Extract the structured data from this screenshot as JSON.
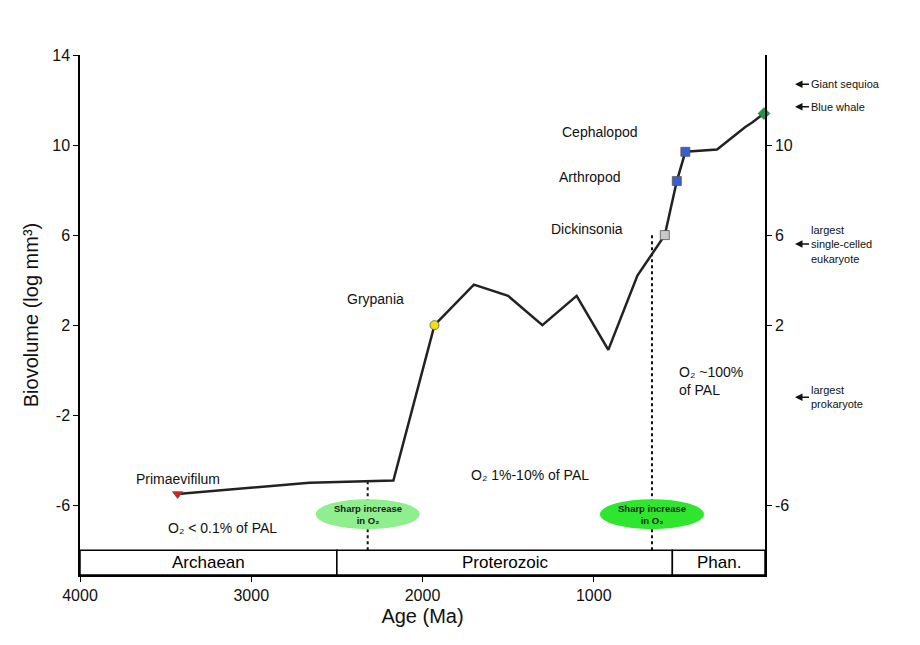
{
  "chart_data": {
    "type": "line",
    "x_label": "Age (Ma)",
    "y_label": "Biovolume (log mm³)",
    "x": [
      3430,
      2660,
      2170,
      1930,
      1700,
      1500,
      1300,
      1100,
      915,
      745,
      585,
      515,
      465,
      280,
      115,
      75,
      6
    ],
    "values": [
      -5.5,
      -5.0,
      -4.9,
      2.0,
      3.8,
      3.3,
      2.0,
      3.3,
      0.9,
      4.2,
      6.0,
      8.4,
      9.7,
      9.8,
      10.8,
      11.0,
      11.4
    ],
    "color": "#222222",
    "xlim": [
      4000,
      0
    ],
    "xticks": [
      4000,
      3000,
      2000,
      1000
    ],
    "ylim": [
      -9.1,
      14
    ],
    "yticks": [
      -6,
      -2,
      2,
      6,
      10,
      14
    ],
    "y2lim": [
      -9.1,
      14
    ],
    "y2ticks": [
      -6,
      2,
      6,
      10
    ],
    "grid": false,
    "points": [
      {
        "label": "Primaevifilum",
        "x": 3430,
        "value": -5.5,
        "color": "#e0201b",
        "marker": "triangle-down"
      },
      {
        "label": "Grypania",
        "x": 1930,
        "value": 2.0,
        "color": "#f2e10c",
        "marker": "circle"
      },
      {
        "label": "Dickinsonia",
        "x": 585,
        "value": 6.0,
        "color": "#c8c8c8",
        "marker": "square"
      },
      {
        "label": "Arthropod",
        "x": 515,
        "value": 8.4,
        "color": "#3a5fcd",
        "marker": "square"
      },
      {
        "label": "Cephalopod",
        "x": 465,
        "value": 9.7,
        "color": "#3a5fcd",
        "marker": "square"
      },
      {
        "x": 6,
        "value": 11.4,
        "color": "#1a9850",
        "marker": "diamond"
      }
    ],
    "size_references": [
      {
        "label": "Giant sequioa",
        "value": 12.7
      },
      {
        "label": "Blue whale",
        "value": 11.7
      },
      {
        "label": "largest single-celled eukaryote",
        "value": 5.6
      },
      {
        "label": "largest prokaryote",
        "value": -1.2
      }
    ],
    "oxygen_levels": [
      {
        "label": "O₂ < 0.1% of PAL",
        "x": 3170,
        "y": -7.0
      },
      {
        "label": "O₂ 1%-10% of PAL",
        "x": 1370,
        "y": -4.65
      },
      {
        "label": "O₂ ~100% of PAL",
        "x": 314,
        "y": -0.5
      }
    ],
    "oxygen_events": [
      {
        "label": "Sharp increase in O₂",
        "x": 2320,
        "y": -6.4,
        "line_top": -4.9,
        "color": "#8fef8f"
      },
      {
        "label": "Sharp increase in O₂",
        "x": 660,
        "y": -6.4,
        "line_top": 6.0,
        "color": "#2ee62e"
      }
    ],
    "era_band_top": -8,
    "eras": [
      {
        "label": "Archaean",
        "start": 4000,
        "end": 2500
      },
      {
        "label": "Proterozoic",
        "start": 2500,
        "end": 541
      },
      {
        "label": "Phan.",
        "start": 541,
        "end": 0
      }
    ]
  }
}
